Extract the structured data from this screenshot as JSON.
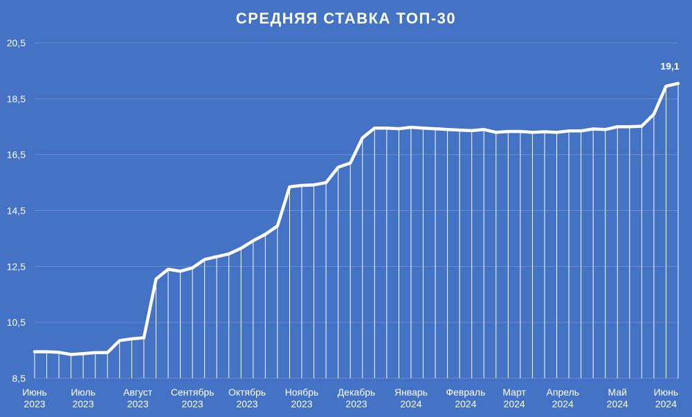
{
  "chart_data": {
    "type": "line",
    "title": "СРЕДНЯЯ СТАВКА ТОП-30",
    "xlabel": "",
    "ylabel": "",
    "ylim": [
      8.5,
      20.5
    ],
    "yticks": [
      "8,5",
      "10,5",
      "12,5",
      "14,5",
      "16,5",
      "18,5",
      "20,5"
    ],
    "grid": true,
    "legend": "none",
    "colors": {
      "background": "#4472C4",
      "line": "#FFFFFF",
      "drop_lines": "#FFFFFF",
      "gridlines": "#6A8ED4"
    },
    "month_labels": [
      {
        "month": "Июнь",
        "year": "2023",
        "index": 0
      },
      {
        "month": "Июль",
        "year": "2023",
        "index": 4
      },
      {
        "month": "Август",
        "year": "2023",
        "index": 8.5
      },
      {
        "month": "Сентябрь",
        "year": "2023",
        "index": 13
      },
      {
        "month": "Октябрь",
        "year": "2023",
        "index": 17.5
      },
      {
        "month": "Ноябрь",
        "year": "2023",
        "index": 22
      },
      {
        "month": "Декабрь",
        "year": "2023",
        "index": 26.5
      },
      {
        "month": "Январь",
        "year": "2024",
        "index": 31
      },
      {
        "month": "Февраль",
        "year": "2024",
        "index": 35.5
      },
      {
        "month": "Март",
        "year": "2024",
        "index": 39.5
      },
      {
        "month": "Апрель",
        "year": "2024",
        "index": 43.5
      },
      {
        "month": "Май",
        "year": "2024",
        "index": 48
      },
      {
        "month": "Июнь",
        "year": "2024",
        "index": 52
      }
    ],
    "series": [
      {
        "values": [
          9.45,
          9.45,
          9.43,
          9.35,
          9.38,
          9.42,
          9.42,
          9.85,
          9.91,
          9.95,
          12.05,
          12.4,
          12.33,
          12.45,
          12.75,
          12.85,
          12.95,
          13.15,
          13.42,
          13.65,
          13.95,
          15.35,
          15.4,
          15.42,
          15.5,
          16.05,
          16.2,
          17.1,
          17.45,
          17.45,
          17.43,
          17.48,
          17.45,
          17.43,
          17.4,
          17.38,
          17.36,
          17.4,
          17.3,
          17.33,
          17.33,
          17.3,
          17.32,
          17.3,
          17.35,
          17.35,
          17.42,
          17.4,
          17.5,
          17.5,
          17.52,
          17.95,
          18.95,
          19.05
        ]
      }
    ],
    "data_labels": [
      {
        "index": 53,
        "text": "19,1"
      }
    ]
  }
}
